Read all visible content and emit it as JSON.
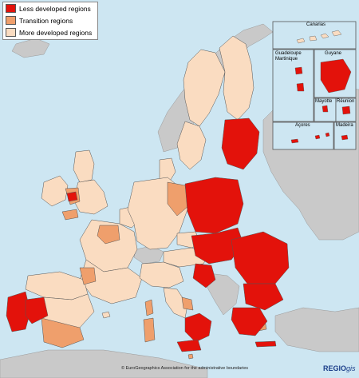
{
  "legend": {
    "items": [
      {
        "label": "Less developed regions",
        "color": "#e3120b"
      },
      {
        "label": "Transition regions",
        "color": "#ef9f6c"
      },
      {
        "label": "More developed regions",
        "color": "#fadcc1"
      }
    ]
  },
  "colors": {
    "sea": "#cde6f2",
    "non_eu_land": "#c9c9c9",
    "border": "#555555",
    "less": "#e3120b",
    "transition": "#ef9f6c",
    "more": "#fadcc1"
  },
  "insets": {
    "canarias": "Canarias",
    "guadeloupe": "Guadeloupe",
    "martinique": "Martinique",
    "guyane": "Guyane",
    "mayotte": "Mayotte",
    "reunion": "Réunion",
    "acores": "Açores",
    "madeira": "Madeira"
  },
  "footer": {
    "credit": "© EuroGeographics Association for the administrative boundaries",
    "logo_main": "REGIO",
    "logo_sub": "gis"
  }
}
